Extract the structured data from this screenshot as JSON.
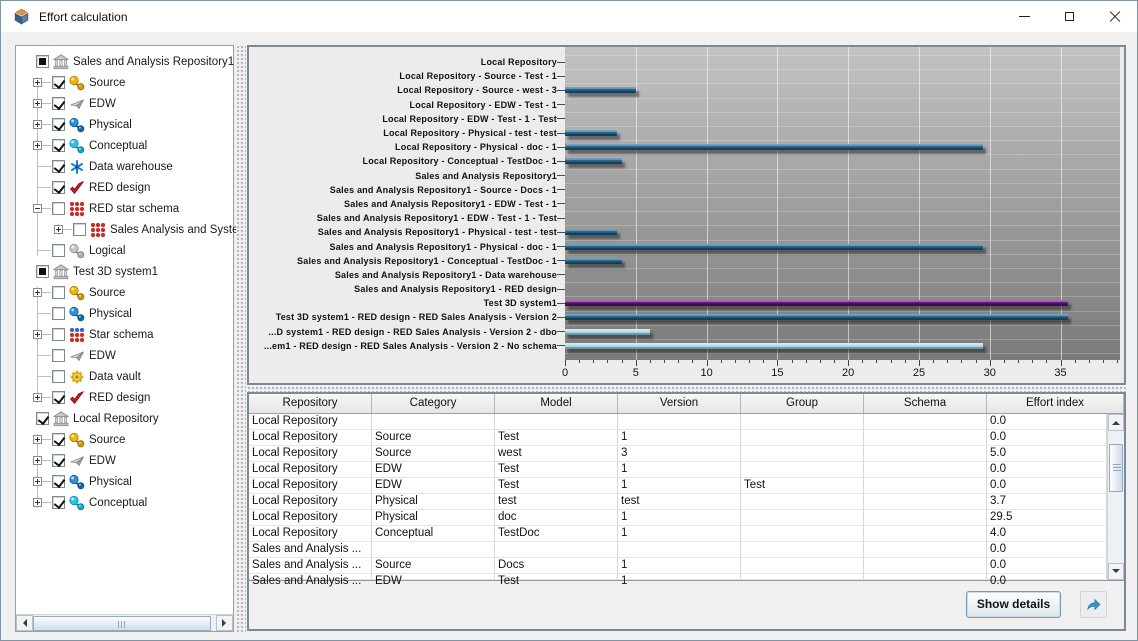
{
  "window": {
    "title": "Effort calculation"
  },
  "tree": {
    "items": [
      {
        "label": "Sales and Analysis Repository1",
        "depth": 0,
        "checkbox": "partial",
        "icon": "repository-icon",
        "expander": "none"
      },
      {
        "label": "Source",
        "depth": 1,
        "checkbox": "checked",
        "icon": "source-icon",
        "expander": "plus"
      },
      {
        "label": "EDW",
        "depth": 1,
        "checkbox": "checked",
        "icon": "edw-icon",
        "expander": "plus"
      },
      {
        "label": "Physical",
        "depth": 1,
        "checkbox": "checked",
        "icon": "physical-icon",
        "expander": "plus"
      },
      {
        "label": "Conceptual",
        "depth": 1,
        "checkbox": "checked",
        "icon": "conceptual-icon",
        "expander": "plus"
      },
      {
        "label": "Data warehouse",
        "depth": 1,
        "checkbox": "checked",
        "icon": "data-warehouse-icon",
        "expander": "none"
      },
      {
        "label": "RED design",
        "depth": 1,
        "checkbox": "checked",
        "icon": "red-design-icon",
        "expander": "none"
      },
      {
        "label": "RED star schema",
        "depth": 1,
        "checkbox": "unchecked",
        "icon": "star-schema-icon",
        "expander": "minus"
      },
      {
        "label": "Sales Analysis and Syste",
        "depth": 2,
        "checkbox": "unchecked",
        "icon": "star-schema-icon",
        "expander": "plus"
      },
      {
        "label": "Logical",
        "depth": 1,
        "checkbox": "unchecked",
        "icon": "logical-icon",
        "expander": "none"
      },
      {
        "label": "Test 3D system1",
        "depth": 0,
        "checkbox": "partial",
        "icon": "repository-icon",
        "expander": "none"
      },
      {
        "label": "Source",
        "depth": 1,
        "checkbox": "unchecked",
        "icon": "source-icon",
        "expander": "plus"
      },
      {
        "label": "Physical",
        "depth": 1,
        "checkbox": "unchecked",
        "icon": "physical-icon",
        "expander": "none"
      },
      {
        "label": "Star schema",
        "depth": 1,
        "checkbox": "unchecked",
        "icon": "star-schema-mixed-icon",
        "expander": "plus"
      },
      {
        "label": "EDW",
        "depth": 1,
        "checkbox": "unchecked",
        "icon": "edw-icon",
        "expander": "none"
      },
      {
        "label": "Data vault",
        "depth": 1,
        "checkbox": "unchecked",
        "icon": "data-vault-icon",
        "expander": "none"
      },
      {
        "label": "RED design",
        "depth": 1,
        "checkbox": "checked",
        "icon": "red-design-icon",
        "expander": "plus"
      },
      {
        "label": "Local Repository",
        "depth": 0,
        "checkbox": "checked",
        "icon": "repository-icon",
        "expander": "none"
      },
      {
        "label": "Source",
        "depth": 1,
        "checkbox": "checked",
        "icon": "source-icon",
        "expander": "plus"
      },
      {
        "label": "EDW",
        "depth": 1,
        "checkbox": "checked",
        "icon": "edw-icon",
        "expander": "plus"
      },
      {
        "label": "Physical",
        "depth": 1,
        "checkbox": "checked",
        "icon": "physical-icon",
        "expander": "plus"
      },
      {
        "label": "Conceptual",
        "depth": 1,
        "checkbox": "checked",
        "icon": "conceptual-icon",
        "expander": "plus"
      }
    ]
  },
  "chart_data": {
    "type": "bar",
    "orientation": "horizontal",
    "categories": [
      "Local Repository",
      "Local Repository - Source - Test - 1",
      "Local Repository - Source - west - 3",
      "Local Repository - EDW - Test - 1",
      "Local Repository - EDW - Test - 1 - Test",
      "Local Repository - Physical - test - test",
      "Local Repository - Physical - doc - 1",
      "Local Repository - Conceptual - TestDoc - 1",
      "Sales and Analysis Repository1",
      "Sales and Analysis Repository1 - Source - Docs - 1",
      "Sales and Analysis Repository1 - EDW - Test - 1",
      "Sales and Analysis Repository1 - EDW - Test - 1 - Test",
      "Sales and Analysis Repository1 - Physical - test - test",
      "Sales and Analysis Repository1 - Physical - doc - 1",
      "Sales and Analysis Repository1 - Conceptual - TestDoc - 1",
      "Sales and Analysis Repository1 - Data warehouse",
      "Sales and Analysis Repository1 - RED design",
      "Test 3D system1",
      "Test 3D system1 - RED design - RED Sales Analysis - Version 2",
      "...D system1 - RED design - RED Sales Analysis - Version 2 - dbo",
      "...em1 - RED design - RED Sales Analysis - Version 2 - No schema"
    ],
    "values": [
      0,
      0,
      5.0,
      0,
      0,
      3.7,
      29.5,
      4.0,
      0,
      0,
      0,
      0,
      3.7,
      29.5,
      4.0,
      0,
      0,
      35.5,
      35.5,
      6.0,
      29.5
    ],
    "bar_colors": [
      "#1e5f87",
      "#1e5f87",
      "#1e5f87",
      "#1e5f87",
      "#1e5f87",
      "#1e5f87",
      "#1e5f87",
      "#1e5f87",
      "#1e5f87",
      "#1e5f87",
      "#1e5f87",
      "#1e5f87",
      "#1e5f87",
      "#1e5f87",
      "#1e5f87",
      "#1e5f87",
      "#1e5f87",
      "#5e0d7a",
      "#1e5f87",
      "#a9dff0",
      "#a9dff0"
    ],
    "xticks": [
      0,
      5,
      10,
      15,
      20,
      25,
      30,
      35
    ],
    "xmax": 39.2,
    "xlabel": "",
    "ylabel": "",
    "legend": "none",
    "grid": "vertical-white-lines"
  },
  "table": {
    "headers": [
      "Repository",
      "Category",
      "Model",
      "Version",
      "Group",
      "Schema",
      "Effort index"
    ],
    "rows": [
      [
        "Local Repository",
        "",
        "",
        "",
        "",
        "",
        "0.0"
      ],
      [
        "Local Repository",
        "Source",
        "Test",
        "1",
        "",
        "",
        "0.0"
      ],
      [
        "Local Repository",
        "Source",
        "west",
        "3",
        "",
        "",
        "5.0"
      ],
      [
        "Local Repository",
        "EDW",
        "Test",
        "1",
        "",
        "",
        "0.0"
      ],
      [
        "Local Repository",
        "EDW",
        "Test",
        "1",
        "Test",
        "",
        "0.0"
      ],
      [
        "Local Repository",
        "Physical",
        "test",
        "test",
        "",
        "",
        "3.7"
      ],
      [
        "Local Repository",
        "Physical",
        "doc",
        "1",
        "",
        "",
        "29.5"
      ],
      [
        "Local Repository",
        "Conceptual",
        "TestDoc",
        "1",
        "",
        "",
        "4.0"
      ],
      [
        "Sales and Analysis ...",
        "",
        "",
        "",
        "",
        "",
        "0.0"
      ],
      [
        "Sales and Analysis ...",
        "Source",
        "Docs",
        "1",
        "",
        "",
        "0.0"
      ],
      [
        "Sales and Analysis ...",
        "EDW",
        "Test",
        "1",
        "",
        "",
        "0.0"
      ]
    ]
  },
  "actions": {
    "show_details_label": "Show details",
    "export_icon": "curved-arrow-icon"
  },
  "colors": {
    "bar_default": "#1e5f87",
    "bar_purple": "#5e0d7a",
    "bar_cyan": "#a9dff0",
    "panel_border": "#7b8a99",
    "plot_bg_top": "#c3c3c3",
    "plot_bg_bottom": "#7a7a7a"
  }
}
